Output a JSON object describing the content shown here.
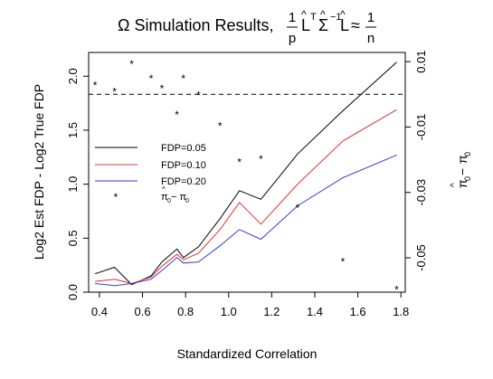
{
  "chart_data": {
    "type": "line",
    "title": {
      "prefix": "Ω Simulation Results, ",
      "frac1_num": "1",
      "frac1_den": "p",
      "L1": "L",
      "hat": "^",
      "sup_T": "T",
      "Sigma": "Σ",
      "sup_inv": "−1",
      "L2": "L",
      "approx": "≈",
      "frac2_num": "1",
      "frac2_den": "n"
    },
    "xlabel": "Standardized Correlation",
    "ylabel": "Log2 Est FDP - Log2 True FDP",
    "y2label": {
      "pi": "π",
      "hat": "^",
      "sub0a": "0",
      "minus": " − ",
      "sub0b": "0"
    },
    "xlim": [
      0.35,
      1.82
    ],
    "ylim": [
      0,
      2.22
    ],
    "y2lim": [
      -0.0605,
      0.0128
    ],
    "x_ticks": [
      0.4,
      0.6,
      0.8,
      1.0,
      1.2,
      1.4,
      1.6,
      1.8
    ],
    "x_tick_labels": [
      "0.4",
      "0.6",
      "0.8",
      "1.0",
      "1.2",
      "1.4",
      "1.6",
      "1.8"
    ],
    "y_ticks": [
      0,
      0.5,
      1.0,
      1.5,
      2.0
    ],
    "y_tick_labels": [
      "0.0",
      "0.5",
      "1.0",
      "1.5",
      "2.0"
    ],
    "y2_ticks": [
      0.01,
      -0.01,
      -0.03,
      -0.05
    ],
    "y2_tick_labels": [
      "0.01",
      "-0.01",
      "-0.03",
      "-0.05"
    ],
    "reference_line_y2": 0,
    "x": [
      0.38,
      0.47,
      0.55,
      0.64,
      0.69,
      0.76,
      0.79,
      0.86,
      0.96,
      1.05,
      1.15,
      1.32,
      1.53,
      1.78
    ],
    "series": [
      {
        "name": "FDP=0.05",
        "color": "#000000",
        "values": [
          0.17,
          0.23,
          0.07,
          0.15,
          0.28,
          0.4,
          0.32,
          0.42,
          0.68,
          0.94,
          0.86,
          1.28,
          1.68,
          2.13
        ]
      },
      {
        "name": "FDP=0.10",
        "color": "#e8302a",
        "values": [
          0.1,
          0.12,
          0.08,
          0.14,
          0.24,
          0.35,
          0.3,
          0.36,
          0.58,
          0.83,
          0.63,
          1.0,
          1.4,
          1.69
        ]
      },
      {
        "name": "FDP=0.20",
        "color": "#3a3ad8",
        "values": [
          0.08,
          0.06,
          0.08,
          0.12,
          0.2,
          0.32,
          0.27,
          0.28,
          0.43,
          0.58,
          0.49,
          0.8,
          1.06,
          1.27
        ]
      }
    ],
    "stars": {
      "name": "π0 hat − π0",
      "x": [
        0.38,
        0.47,
        0.55,
        0.64,
        0.69,
        0.76,
        0.79,
        0.86,
        0.96,
        1.05,
        1.15,
        1.32,
        1.53,
        1.78
      ],
      "y2": [
        0.003,
        0.001,
        0.0095,
        0.005,
        0.002,
        -0.006,
        0.005,
        0.0,
        -0.0095,
        -0.0205,
        -0.0195,
        -0.0345,
        -0.051,
        -0.0595
      ]
    },
    "legend": {
      "position": "center-left",
      "entries": [
        {
          "label": "FDP=0.05",
          "color": "#000000",
          "kind": "line"
        },
        {
          "label": "FDP=0.10",
          "color": "#e8302a",
          "kind": "line"
        },
        {
          "label": "FDP=0.20",
          "color": "#3a3ad8",
          "kind": "line"
        },
        {
          "label_pi": "π",
          "label_hat": "^",
          "label_sub": "0",
          "label_rest": " − π",
          "label_sub2": "0",
          "kind": "star"
        }
      ]
    },
    "grid": false
  }
}
